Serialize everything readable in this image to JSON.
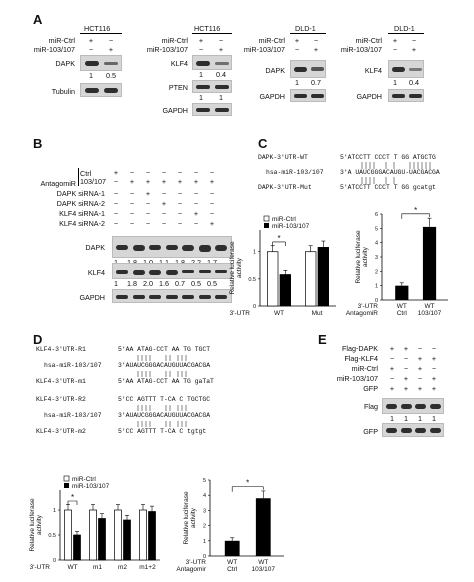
{
  "panels": {
    "A": "A",
    "B": "B",
    "C": "C",
    "D": "D",
    "E": "E"
  },
  "pm": {
    "p": "+",
    "m": "−"
  },
  "panel_a": {
    "blot1": {
      "cell": "HCT116",
      "row1": "miR-Ctrl",
      "row2": "miR-103/107",
      "signs1": [
        "+",
        "−"
      ],
      "signs2": [
        "−",
        "+"
      ],
      "prot1": "DAPK",
      "quant": [
        "1",
        "0.5"
      ],
      "prot2": "Tubulin"
    },
    "blot2": {
      "cell": "HCT116",
      "row1": "miR-Ctrl",
      "row2": "miR-103/107",
      "signs1": [
        "+",
        "−"
      ],
      "signs2": [
        "−",
        "+"
      ],
      "prot1": "KLF4",
      "quant1": [
        "1",
        "0.4"
      ],
      "prot2": "PTEN",
      "quant2": [
        "1",
        "1"
      ],
      "prot3": "GAPDH"
    },
    "blot3": {
      "cell": "DLD-1",
      "row1": "miR-Ctrl",
      "row2": "miR-103/107",
      "signs1": [
        "+",
        "−"
      ],
      "signs2": [
        "−",
        "+"
      ],
      "prot1": "DAPK",
      "quant": [
        "1",
        "0.7"
      ],
      "prot2": "GAPDH"
    },
    "blot4": {
      "cell": "DLD-1",
      "row1": "miR-Ctrl",
      "row2": "miR-103/107",
      "signs1": [
        "+",
        "−"
      ],
      "signs2": [
        "−",
        "+"
      ],
      "prot1": "KLF4",
      "quant": [
        "1",
        "0.4"
      ],
      "prot2": "GAPDH"
    }
  },
  "panel_b": {
    "antagomir": "AntagomiR",
    "ctrl": "Ctrl",
    "mir": "103/107",
    "rows": [
      "DAPK siRNA-1",
      "DAPK siRNA-2",
      "KLF4 siRNA-1",
      "KLF4 siRNA-2"
    ],
    "prot1": "DAPK",
    "quant1": [
      "1",
      "1.8",
      "1.0",
      "1.1",
      "1.8",
      "2.2",
      "1.7"
    ],
    "prot2": "KLF4",
    "quant2": [
      "1",
      "1.8",
      "2.0",
      "1.6",
      "0.7",
      "0.5",
      "0.5"
    ],
    "prot3": "GAPDH"
  },
  "panel_c": {
    "seq": {
      "wt_label": "DAPK-3'UTR-WT",
      "wt_seq": "5'ATCCTT  CCCT  T GG  ATGCTG",
      "mir_label": "hsa-miR-103/107",
      "mir_seq": "3'A UAUCGGGACAUGU-UACGACGA",
      "mut_label": "DAPK-3'UTR-Mut",
      "mut_seq": "5'ATCCTT  CCCT  T GG  gcatgt"
    },
    "bar_chart": {
      "legend": [
        "miR-Ctrl",
        "miR-103/107"
      ],
      "ylabel": [
        "Relative luciferase",
        "activity"
      ],
      "xrow_label": "3'-UTR",
      "groups": [
        "WT",
        "Mut"
      ],
      "star": "*"
    },
    "bar_chart2": {
      "ylabel": [
        "Relative luciferase",
        "activity"
      ],
      "xrow_label1": "3'-UTR",
      "xrow_label2": "AntagomiR",
      "groups": [
        "WT",
        "WT"
      ],
      "subgroups": [
        "Ctrl",
        "103/107"
      ],
      "star": "*"
    }
  },
  "panel_d": {
    "seq": [
      {
        "label": "KLF4-3'UTR-R1",
        "seq": "5'AA ATAG-CCT AA TG TGCT"
      },
      {
        "label": "hsa-miR-103/107",
        "seq": "3'AUAUCGGGACAUGUUACGACGA"
      },
      {
        "label": "KLF4-3'UTR-m1",
        "seq": "5'AA ATAG-CCT AA TG gaTaT"
      },
      {
        "label": "KLF4-3'UTR-R2",
        "seq": "5'CC AGTTT  T-CA C TGCTGC"
      },
      {
        "label": "hsa-miR-103/107",
        "seq": "3'AUAUCGGGACAUGUUACGACGA"
      },
      {
        "label": "KLF4-3'UTR-m2",
        "seq": "5'CC AGTTT  T-CA C tgtgt"
      }
    ],
    "bar_chart": {
      "legend": [
        "miR-Ctrl",
        "miR-103/107"
      ],
      "ylabel": [
        "Relative luciferase",
        "activity"
      ],
      "xrow_label": "3'-UTR",
      "groups": [
        "WT",
        "m1",
        "m2",
        "m1+2"
      ],
      "star": "*"
    },
    "bar_chart2": {
      "ylabel": [
        "Relative luciferase",
        "activity"
      ],
      "xrow_label1": "3'-UTR",
      "xrow_label2": "Antagomir",
      "groups": [
        "WT",
        "WT"
      ],
      "subgroups": [
        "Ctrl",
        "103/107"
      ],
      "star": "*"
    }
  },
  "panel_e": {
    "rows": [
      "Flag-DAPK",
      "Flag-KLF4",
      "miR-Ctrl",
      "miR-103/107",
      "GFP"
    ],
    "signs": [
      [
        "+",
        "+",
        "−",
        "−"
      ],
      [
        "−",
        "−",
        "+",
        "+"
      ],
      [
        "+",
        "−",
        "+",
        "−"
      ],
      [
        "−",
        "+",
        "−",
        "+"
      ],
      [
        "+",
        "+",
        "+",
        "+"
      ]
    ],
    "prot1": "Flag",
    "quant": [
      "1",
      "1",
      "1",
      "1"
    ],
    "prot2": "GFP"
  },
  "chart_data": [
    {
      "type": "bar",
      "categories": [
        "WT",
        "Mut"
      ],
      "series": [
        {
          "name": "miR-Ctrl",
          "values": [
            1.0,
            1.0
          ]
        },
        {
          "name": "miR-103/107",
          "values": [
            0.58,
            1.08
          ]
        }
      ],
      "ylabel": "Relative luciferase activity",
      "ylim": [
        0,
        1.4
      ]
    },
    {
      "type": "bar",
      "categories": [
        "WT Ctrl",
        "WT 103/107"
      ],
      "series": [
        {
          "values": [
            1.0,
            5.1
          ]
        }
      ],
      "ylabel": "Relative luciferase activity",
      "ylim": [
        0,
        6
      ]
    },
    {
      "type": "bar",
      "categories": [
        "WT",
        "m1",
        "m2",
        "m1+2"
      ],
      "series": [
        {
          "name": "miR-Ctrl",
          "values": [
            1.0,
            1.0,
            1.0,
            1.0
          ]
        },
        {
          "name": "miR-103/107",
          "values": [
            0.5,
            0.83,
            0.8,
            0.97
          ]
        }
      ],
      "ylabel": "Relative luciferase activity",
      "ylim": [
        0,
        1.4
      ]
    },
    {
      "type": "bar",
      "categories": [
        "WT Ctrl",
        "WT 103/107"
      ],
      "series": [
        {
          "values": [
            1.0,
            3.8
          ]
        }
      ],
      "ylabel": "Relative luciferase activity",
      "ylim": [
        0,
        5
      ]
    }
  ]
}
